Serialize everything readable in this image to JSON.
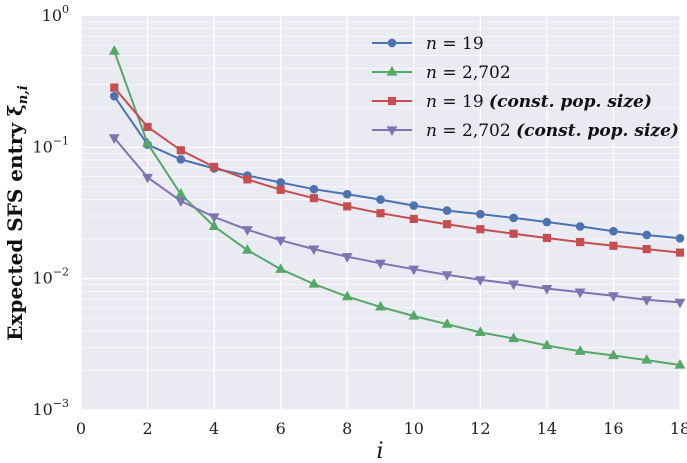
{
  "chart_data": {
    "type": "line",
    "xlabel": "i",
    "ylabel": "Expected SFS entry ξn,i",
    "xlim": [
      0,
      18
    ],
    "ylim": [
      0.001,
      1
    ],
    "yscale": "log",
    "grid": true,
    "legend_placement": "top-right",
    "x_ticks": [
      "0",
      "2",
      "4",
      "6",
      "8",
      "10",
      "12",
      "14",
      "16",
      "18"
    ],
    "y_ticks": [
      {
        "base": "10",
        "exp": "0"
      },
      {
        "base": "10",
        "exp": "−1"
      },
      {
        "base": "10",
        "exp": "−2"
      },
      {
        "base": "10",
        "exp": "−3"
      }
    ],
    "x": [
      1,
      2,
      3,
      4,
      5,
      6,
      7,
      8,
      9,
      10,
      11,
      12,
      13,
      14,
      15,
      16,
      17,
      18
    ],
    "series": [
      {
        "name": "n = 19",
        "color": "#4C72B0",
        "marker": "circle",
        "values": [
          0.245,
          0.105,
          0.081,
          0.069,
          0.061,
          0.054,
          0.048,
          0.044,
          0.04,
          0.036,
          0.033,
          0.031,
          0.029,
          0.027,
          0.025,
          0.023,
          0.0215,
          0.0203
        ]
      },
      {
        "name": "n = 2,702",
        "color": "#55A868",
        "marker": "triangle-up",
        "values": [
          0.54,
          0.107,
          0.044,
          0.025,
          0.0165,
          0.0118,
          0.0091,
          0.0073,
          0.0061,
          0.0052,
          0.0045,
          0.0039,
          0.0035,
          0.0031,
          0.0028,
          0.0026,
          0.0024,
          0.0022
        ]
      },
      {
        "name": "n = 19 (const. pop. size)",
        "color": "#C44E52",
        "marker": "square",
        "values": [
          0.285,
          0.143,
          0.095,
          0.071,
          0.057,
          0.0475,
          0.041,
          0.0355,
          0.0315,
          0.0285,
          0.026,
          0.0238,
          0.022,
          0.0204,
          0.019,
          0.0178,
          0.0168,
          0.0158
        ]
      },
      {
        "name": "n = 2,702 (const. pop. size)",
        "color": "#8172B2",
        "marker": "triangle-down",
        "values": [
          0.118,
          0.059,
          0.039,
          0.0295,
          0.0236,
          0.0196,
          0.0168,
          0.0147,
          0.0131,
          0.0118,
          0.0107,
          0.0098,
          0.0091,
          0.0084,
          0.0079,
          0.0074,
          0.0069,
          0.0066
        ]
      }
    ]
  }
}
